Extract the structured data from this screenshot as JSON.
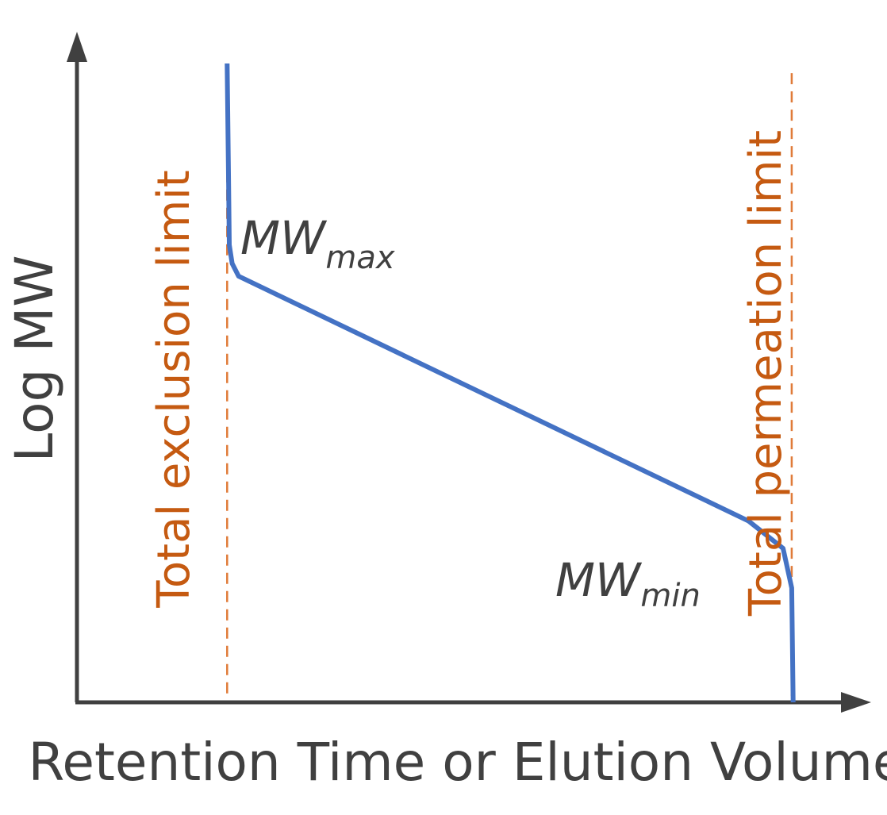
{
  "chart_data": {
    "type": "line",
    "title": "",
    "xlabel": "Retention Time or Elution Volume",
    "ylabel": "Log MW",
    "xlim": [
      0,
      100
    ],
    "ylim": [
      0,
      100
    ],
    "grid": false,
    "series": [
      {
        "x": [
          20.8,
          21.0,
          21.1,
          21.5,
          22.4,
          93.0,
          97.8,
          99.0,
          99.2
        ],
        "y": [
          100.0,
          81.6,
          71.6,
          68.7,
          66.7,
          28.4,
          24.1,
          17.9,
          0.0
        ],
        "color": "#4472C4"
      }
    ],
    "reference_lines": [
      {
        "x": 20.8,
        "label": "Total exclusion limit",
        "color": "#E07B39"
      },
      {
        "x": 99.0,
        "label": "Total permeation limit",
        "color": "#E07B39"
      }
    ],
    "annotations": [
      {
        "main": "MW",
        "sub": "max",
        "x": 22.4,
        "y": 66.7
      },
      {
        "main": "MW",
        "sub": "min",
        "x": 97.8,
        "y": 24.1
      }
    ]
  }
}
